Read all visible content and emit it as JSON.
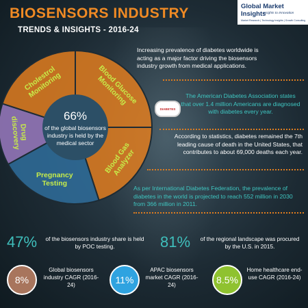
{
  "header": {
    "title": "BIOSENSORS INDUSTRY",
    "subtitle": "TRENDS & INSIGHTS - 2016-24"
  },
  "logo": {
    "name": "Global Market Insights",
    "tagline": "Insights to Innovation",
    "services": "Market Research | Technology Insights | Growth Consulting"
  },
  "colors": {
    "accent": "#f08a24",
    "teal": "#3fc7c2",
    "purple": "#a06fc4",
    "blue": "#2fa3e0",
    "green": "#8fc22f"
  },
  "chart_data": {
    "type": "pie",
    "title": "",
    "categories": [
      "Blood Glucose Monitoring",
      "Blood Gas Analyzer",
      "Pregnancy Testing",
      "Drug discovery",
      "Cholestrol Monitoring"
    ],
    "values": [
      25,
      20,
      22,
      13,
      20
    ],
    "colors": [
      "#e07d1f",
      "#e07d1f",
      "#2f6d9b",
      "#9a7ac0",
      "#e07d1f"
    ],
    "center": {
      "value": "66%",
      "text": "of the global biosensors industry is held by the medical sector"
    }
  },
  "facts": {
    "diabetes_growth": "Increasing prevalence of diabetes worldwide is acting as a major factor driving the biosensors industry growth from medical applications.",
    "ada": "The American Diabetes Association states that over 1.4 million Americans are diagnosed with diabetes every year.",
    "badge": "DIABETES",
    "cause_of_death": "According to statistics, diabetes remained the 7th leading cause of death in the United States, that contributes to about 69,000 deaths each year.",
    "idf": "As per International Diabetes Federation, the prevalence of diabetes in the world is projected to reach 552 million in 2030 from 366 million in 2011."
  },
  "stats": [
    {
      "value": "47%",
      "text": "of the biosensors industry share is held by POC testing."
    },
    {
      "value": "81%",
      "text": "of the regional landscape was procured by the U.S. in 2015."
    }
  ],
  "cagr": [
    {
      "value": "8%",
      "label": "Global biosensors industry CAGR (2016-24)",
      "color": "#a8755d"
    },
    {
      "value": "11%",
      "label": "APAC biosensors market CAGR (2016-24)",
      "color": "#2fa3e0"
    },
    {
      "value": "8.5%",
      "label": "Home healthcare end-use CAGR (2016-24)",
      "color": "#8fc22f"
    }
  ]
}
